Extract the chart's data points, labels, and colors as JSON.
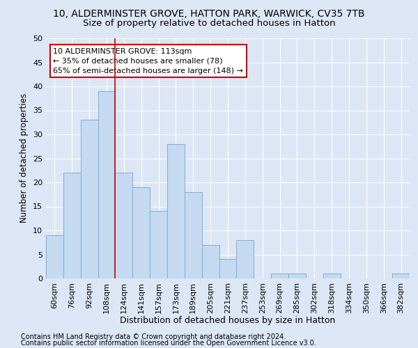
{
  "title1": "10, ALDERMINSTER GROVE, HATTON PARK, WARWICK, CV35 7TB",
  "title2": "Size of property relative to detached houses in Hatton",
  "xlabel": "Distribution of detached houses by size in Hatton",
  "ylabel": "Number of detached properties",
  "categories": [
    "60sqm",
    "76sqm",
    "92sqm",
    "108sqm",
    "124sqm",
    "141sqm",
    "157sqm",
    "173sqm",
    "189sqm",
    "205sqm",
    "221sqm",
    "237sqm",
    "253sqm",
    "269sqm",
    "285sqm",
    "302sqm",
    "318sqm",
    "334sqm",
    "350sqm",
    "366sqm",
    "382sqm"
  ],
  "values": [
    9,
    22,
    33,
    39,
    22,
    19,
    14,
    28,
    18,
    7,
    4,
    8,
    0,
    1,
    1,
    0,
    1,
    0,
    0,
    0,
    1
  ],
  "bar_color": "#c5d9f1",
  "bar_edge_color": "#7ab0d4",
  "vline_color": "#cc0000",
  "vline_x_index": 3,
  "annotation_text": "10 ALDERMINSTER GROVE: 113sqm\n← 35% of detached houses are smaller (78)\n65% of semi-detached houses are larger (148) →",
  "annotation_box_color": "#ffffff",
  "annotation_box_edge": "#cc0000",
  "ylim": [
    0,
    50
  ],
  "yticks": [
    0,
    5,
    10,
    15,
    20,
    25,
    30,
    35,
    40,
    45,
    50
  ],
  "footer1": "Contains HM Land Registry data © Crown copyright and database right 2024.",
  "footer2": "Contains public sector information licensed under the Open Government Licence v3.0.",
  "bg_color": "#dce6f5",
  "grid_color": "#ffffff",
  "title1_fontsize": 10,
  "title2_fontsize": 9.5,
  "xlabel_fontsize": 9,
  "ylabel_fontsize": 8.5,
  "tick_fontsize": 8,
  "footer_fontsize": 7
}
